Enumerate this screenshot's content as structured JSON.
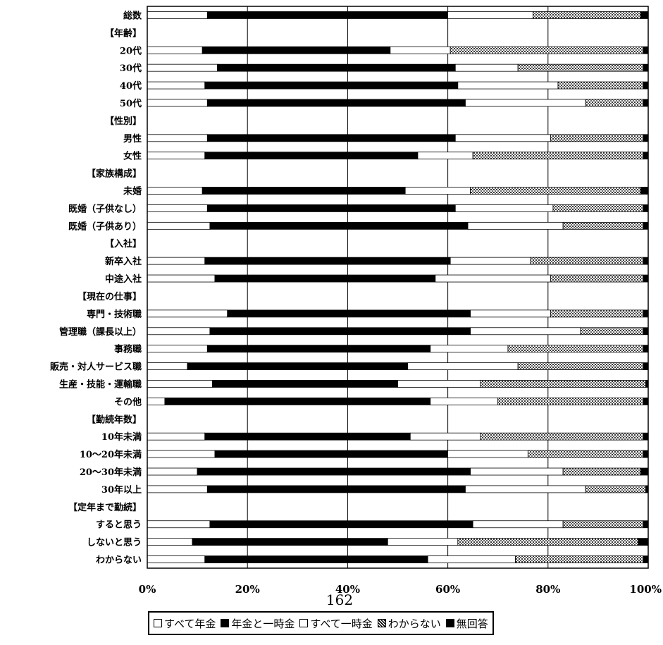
{
  "page_number": "162",
  "colors": {
    "all_pension": "#ffffff",
    "pension_and_lump": "#000000",
    "all_lump": "#ffffff",
    "unknown": "#8a8a8a",
    "no_answer": "#000000"
  },
  "chart_data": {
    "type": "bar",
    "orientation": "horizontal",
    "stacked": true,
    "percent": true,
    "title": "",
    "xlabel": "",
    "ylabel": "",
    "xlim": [
      0,
      100
    ],
    "x_ticks": [
      "0%",
      "20%",
      "40%",
      "60%",
      "80%",
      "100%"
    ],
    "grid": true,
    "legend_position": "bottom",
    "legend": [
      "すべて年金",
      "年金と一時金",
      "すべて一時金",
      "わからない",
      "無回答"
    ],
    "categories": [
      "総数",
      "【年齢】",
      "20代",
      "30代",
      "40代",
      "50代",
      "【性別】",
      "男性",
      "女性",
      "【家族構成】",
      "未婚",
      "既婚（子供なし）",
      "既婚（子供あり）",
      "【入社】",
      "新卒入社",
      "中途入社",
      "【現在の仕事】",
      "専門・技術職",
      "管理職（課長以上）",
      "事務職",
      "販売・対人サービス職",
      "生産・技能・運輸職",
      "その他",
      "【勤続年数】",
      "10年未満",
      "10～20年未満",
      "20～30年未満",
      "30年以上",
      "【定年まで勤続】",
      "すると思う",
      "しないと思う",
      "わからない"
    ],
    "series": [
      {
        "name": "すべて年金",
        "values": [
          12.0,
          null,
          11.0,
          14.0,
          11.5,
          12.0,
          null,
          12.0,
          11.5,
          null,
          11.0,
          12.0,
          12.5,
          null,
          11.5,
          13.5,
          null,
          16.0,
          12.5,
          12.0,
          8.0,
          13.0,
          3.5,
          null,
          11.5,
          13.5,
          10.0,
          12.0,
          null,
          12.5,
          9.0,
          11.5
        ]
      },
      {
        "name": "年金と一時金",
        "values": [
          48.0,
          null,
          37.5,
          47.5,
          50.5,
          51.5,
          null,
          49.5,
          42.5,
          null,
          40.5,
          49.5,
          51.5,
          null,
          49.0,
          44.0,
          null,
          48.5,
          52.0,
          44.5,
          44.0,
          37.0,
          53.0,
          null,
          41.0,
          46.5,
          54.5,
          51.5,
          null,
          52.5,
          39.0,
          44.5
        ]
      },
      {
        "name": "すべて一時金",
        "values": [
          17.0,
          null,
          12.0,
          12.5,
          20.0,
          24.0,
          null,
          19.0,
          11.0,
          null,
          13.0,
          19.5,
          19.0,
          null,
          16.0,
          23.0,
          null,
          16.0,
          22.0,
          15.5,
          22.0,
          16.5,
          13.5,
          null,
          14.0,
          16.0,
          18.5,
          24.0,
          null,
          18.0,
          14.0,
          17.5
        ]
      },
      {
        "name": "わからない",
        "values": [
          21.5,
          null,
          38.5,
          25.0,
          17.0,
          11.5,
          null,
          18.5,
          34.0,
          null,
          34.0,
          18.0,
          16.0,
          null,
          22.5,
          18.5,
          null,
          18.5,
          12.5,
          27.0,
          25.0,
          33.0,
          29.0,
          null,
          32.5,
          23.0,
          15.5,
          12.0,
          null,
          16.0,
          36.0,
          25.5
        ]
      },
      {
        "name": "無回答",
        "values": [
          1.5,
          null,
          1.0,
          1.0,
          1.0,
          1.0,
          null,
          1.0,
          1.0,
          null,
          1.5,
          1.0,
          1.0,
          null,
          1.0,
          1.0,
          null,
          1.0,
          1.0,
          1.0,
          1.0,
          0.5,
          1.0,
          null,
          1.0,
          1.0,
          1.5,
          0.5,
          null,
          1.0,
          2.0,
          1.0
        ]
      }
    ]
  }
}
